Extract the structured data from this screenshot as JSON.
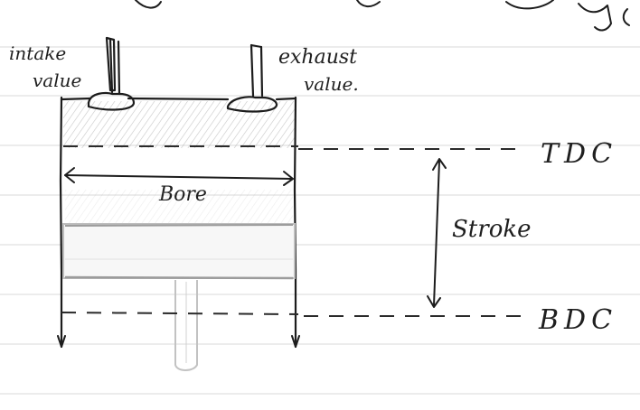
{
  "labels": {
    "intake_line1": "intake",
    "intake_line2": "value",
    "exhaust_line1": "exhaust",
    "exhaust_line2": "value.",
    "tdc": "TDC",
    "bdc": "BDC",
    "bore": "Bore",
    "stroke": "Stroke"
  },
  "colors": {
    "ink": "#1c1c1c",
    "paper": "#ffffff",
    "ruled_line": "#d9d9d9",
    "shading": "#bdbdbd"
  }
}
